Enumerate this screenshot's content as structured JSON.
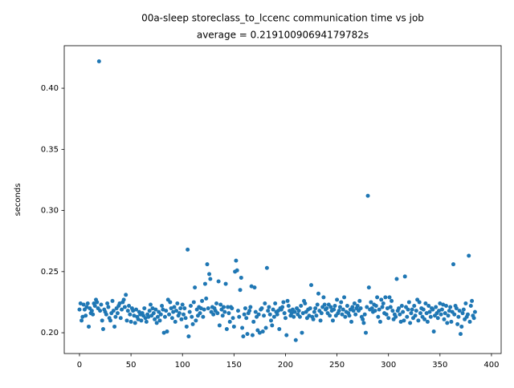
{
  "chart_data": {
    "type": "scatter",
    "title": "00a-sleep storeclass_to_lccenc communication time vs job",
    "subtitle": "average = 0.21910090694179782s",
    "y_label": "seconds",
    "color": "#1f77b4",
    "grid": false,
    "xlim": [
      -14.8,
      409.4
    ],
    "ylim": [
      0.183,
      0.4348
    ],
    "xticks": [
      0,
      50,
      100,
      150,
      200,
      250,
      300,
      350,
      400
    ],
    "yticks": [
      {
        "value": 0.2,
        "label": "0.20"
      },
      0.25,
      {
        "value": 0.3,
        "label": "0.30"
      },
      0.35,
      {
        "value": 0.4,
        "label": "0.40"
      }
    ],
    "x": [
      0,
      1,
      2,
      3,
      4,
      5,
      6,
      7,
      8,
      9,
      10,
      11,
      12,
      13,
      14,
      15,
      16,
      17,
      18,
      19,
      20,
      21,
      22,
      23,
      24,
      25,
      26,
      27,
      28,
      29,
      30,
      31,
      32,
      33,
      34,
      35,
      36,
      37,
      38,
      39,
      40,
      41,
      42,
      43,
      44,
      45,
      46,
      47,
      48,
      49,
      50,
      51,
      52,
      53,
      54,
      55,
      56,
      57,
      58,
      59,
      60,
      61,
      62,
      63,
      64,
      65,
      66,
      67,
      68,
      69,
      70,
      71,
      72,
      73,
      74,
      75,
      76,
      77,
      78,
      79,
      80,
      81,
      82,
      83,
      84,
      85,
      86,
      87,
      88,
      89,
      90,
      91,
      92,
      93,
      94,
      95,
      96,
      97,
      98,
      99,
      100,
      101,
      102,
      103,
      104,
      105,
      106,
      107,
      108,
      109,
      110,
      111,
      112,
      113,
      114,
      115,
      116,
      117,
      118,
      119,
      120,
      121,
      122,
      123,
      124,
      125,
      126,
      127,
      128,
      129,
      130,
      131,
      132,
      133,
      134,
      135,
      136,
      137,
      138,
      139,
      140,
      141,
      142,
      143,
      144,
      145,
      146,
      147,
      148,
      149,
      150,
      151,
      152,
      153,
      154,
      155,
      156,
      157,
      158,
      159,
      160,
      161,
      162,
      163,
      164,
      165,
      166,
      167,
      168,
      169,
      170,
      171,
      172,
      173,
      174,
      175,
      176,
      177,
      178,
      179,
      180,
      181,
      182,
      183,
      184,
      185,
      186,
      187,
      188,
      189,
      190,
      191,
      192,
      193,
      194,
      195,
      196,
      197,
      198,
      199,
      200,
      201,
      202,
      203,
      204,
      205,
      206,
      207,
      208,
      209,
      210,
      211,
      212,
      213,
      214,
      215,
      216,
      217,
      218,
      219,
      220,
      221,
      222,
      223,
      224,
      225,
      226,
      227,
      228,
      229,
      230,
      231,
      232,
      233,
      234,
      235,
      236,
      237,
      238,
      239,
      240,
      241,
      242,
      243,
      244,
      245,
      246,
      247,
      248,
      249,
      250,
      251,
      252,
      253,
      254,
      255,
      256,
      257,
      258,
      259,
      260,
      261,
      262,
      263,
      264,
      265,
      266,
      267,
      268,
      269,
      270,
      271,
      272,
      273,
      274,
      275,
      276,
      277,
      278,
      279,
      280,
      281,
      282,
      283,
      284,
      285,
      286,
      287,
      288,
      289,
      290,
      291,
      292,
      293,
      294,
      295,
      296,
      297,
      298,
      299,
      300,
      301,
      302,
      303,
      304,
      305,
      306,
      307,
      308,
      309,
      310,
      311,
      312,
      313,
      314,
      315,
      316,
      317,
      318,
      319,
      320,
      321,
      322,
      323,
      324,
      325,
      326,
      327,
      328,
      329,
      330,
      331,
      332,
      333,
      334,
      335,
      336,
      337,
      338,
      339,
      340,
      341,
      342,
      343,
      344,
      345,
      346,
      347,
      348,
      349,
      350,
      351,
      352,
      353,
      354,
      355,
      356,
      357,
      358,
      359,
      360,
      361,
      362,
      363,
      364,
      365,
      366,
      367,
      368,
      369,
      370,
      371,
      372,
      373,
      374,
      375,
      376,
      377,
      378,
      379,
      380,
      381,
      382,
      383,
      384
    ],
    "values": [
      0.219,
      0.224,
      0.21,
      0.213,
      0.223,
      0.219,
      0.214,
      0.221,
      0.224,
      0.205,
      0.22,
      0.216,
      0.218,
      0.215,
      0.224,
      0.222,
      0.227,
      0.225,
      0.22,
      0.422,
      0.218,
      0.223,
      0.21,
      0.203,
      0.219,
      0.217,
      0.215,
      0.224,
      0.221,
      0.212,
      0.21,
      0.216,
      0.226,
      0.218,
      0.205,
      0.213,
      0.22,
      0.216,
      0.222,
      0.224,
      0.212,
      0.219,
      0.225,
      0.227,
      0.221,
      0.231,
      0.21,
      0.218,
      0.222,
      0.215,
      0.209,
      0.22,
      0.218,
      0.214,
      0.208,
      0.219,
      0.213,
      0.211,
      0.217,
      0.215,
      0.21,
      0.216,
      0.214,
      0.22,
      0.212,
      0.209,
      0.215,
      0.213,
      0.218,
      0.223,
      0.214,
      0.22,
      0.216,
      0.211,
      0.219,
      0.208,
      0.213,
      0.217,
      0.21,
      0.215,
      0.222,
      0.219,
      0.2,
      0.213,
      0.218,
      0.201,
      0.227,
      0.215,
      0.225,
      0.22,
      0.212,
      0.217,
      0.221,
      0.209,
      0.218,
      0.224,
      0.214,
      0.216,
      0.22,
      0.211,
      0.223,
      0.215,
      0.22,
      0.212,
      0.205,
      0.268,
      0.197,
      0.217,
      0.222,
      0.213,
      0.207,
      0.225,
      0.237,
      0.21,
      0.219,
      0.214,
      0.221,
      0.216,
      0.22,
      0.226,
      0.213,
      0.219,
      0.24,
      0.228,
      0.256,
      0.22,
      0.248,
      0.244,
      0.217,
      0.221,
      0.215,
      0.22,
      0.218,
      0.224,
      0.216,
      0.242,
      0.206,
      0.223,
      0.219,
      0.214,
      0.221,
      0.217,
      0.24,
      0.203,
      0.221,
      0.216,
      0.209,
      0.221,
      0.22,
      0.212,
      0.205,
      0.25,
      0.259,
      0.251,
      0.218,
      0.213,
      0.235,
      0.245,
      0.204,
      0.197,
      0.215,
      0.22,
      0.212,
      0.199,
      0.216,
      0.218,
      0.221,
      0.238,
      0.198,
      0.209,
      0.237,
      0.217,
      0.213,
      0.202,
      0.215,
      0.2,
      0.219,
      0.22,
      0.201,
      0.214,
      0.224,
      0.204,
      0.253,
      0.218,
      0.221,
      0.215,
      0.21,
      0.206,
      0.219,
      0.213,
      0.224,
      0.217,
      0.215,
      0.218,
      0.203,
      0.22,
      0.219,
      0.221,
      0.225,
      0.216,
      0.212,
      0.198,
      0.226,
      0.222,
      0.218,
      0.214,
      0.216,
      0.219,
      0.213,
      0.217,
      0.194,
      0.22,
      0.215,
      0.218,
      0.213,
      0.222,
      0.2,
      0.216,
      0.226,
      0.224,
      0.217,
      0.212,
      0.219,
      0.214,
      0.22,
      0.239,
      0.213,
      0.211,
      0.217,
      0.22,
      0.214,
      0.223,
      0.232,
      0.218,
      0.21,
      0.216,
      0.221,
      0.229,
      0.223,
      0.219,
      0.22,
      0.216,
      0.223,
      0.214,
      0.221,
      0.218,
      0.21,
      0.219,
      0.222,
      0.214,
      0.227,
      0.216,
      0.218,
      0.221,
      0.225,
      0.215,
      0.219,
      0.229,
      0.213,
      0.217,
      0.222,
      0.216,
      0.214,
      0.219,
      0.209,
      0.221,
      0.218,
      0.224,
      0.215,
      0.22,
      0.222,
      0.218,
      0.226,
      0.22,
      0.213,
      0.211,
      0.208,
      0.215,
      0.2,
      0.221,
      0.312,
      0.237,
      0.219,
      0.225,
      0.22,
      0.217,
      0.223,
      0.218,
      0.222,
      0.229,
      0.213,
      0.219,
      0.209,
      0.227,
      0.221,
      0.224,
      0.216,
      0.229,
      0.215,
      0.22,
      0.212,
      0.229,
      0.221,
      0.226,
      0.218,
      0.211,
      0.215,
      0.213,
      0.244,
      0.218,
      0.22,
      0.215,
      0.209,
      0.222,
      0.217,
      0.21,
      0.246,
      0.221,
      0.213,
      0.219,
      0.225,
      0.208,
      0.216,
      0.219,
      0.212,
      0.222,
      0.214,
      0.218,
      0.227,
      0.21,
      0.225,
      0.216,
      0.22,
      0.213,
      0.219,
      0.211,
      0.224,
      0.216,
      0.209,
      0.222,
      0.217,
      0.213,
      0.22,
      0.219,
      0.201,
      0.214,
      0.221,
      0.216,
      0.212,
      0.218,
      0.224,
      0.215,
      0.219,
      0.223,
      0.211,
      0.216,
      0.222,
      0.208,
      0.214,
      0.218,
      0.221,
      0.209,
      0.217,
      0.256,
      0.215,
      0.222,
      0.22,
      0.207,
      0.213,
      0.218,
      0.199,
      0.205,
      0.216,
      0.219,
      0.211,
      0.224,
      0.213,
      0.215,
      0.263,
      0.209,
      0.222,
      0.226,
      0.214,
      0.212,
      0.217
    ]
  }
}
